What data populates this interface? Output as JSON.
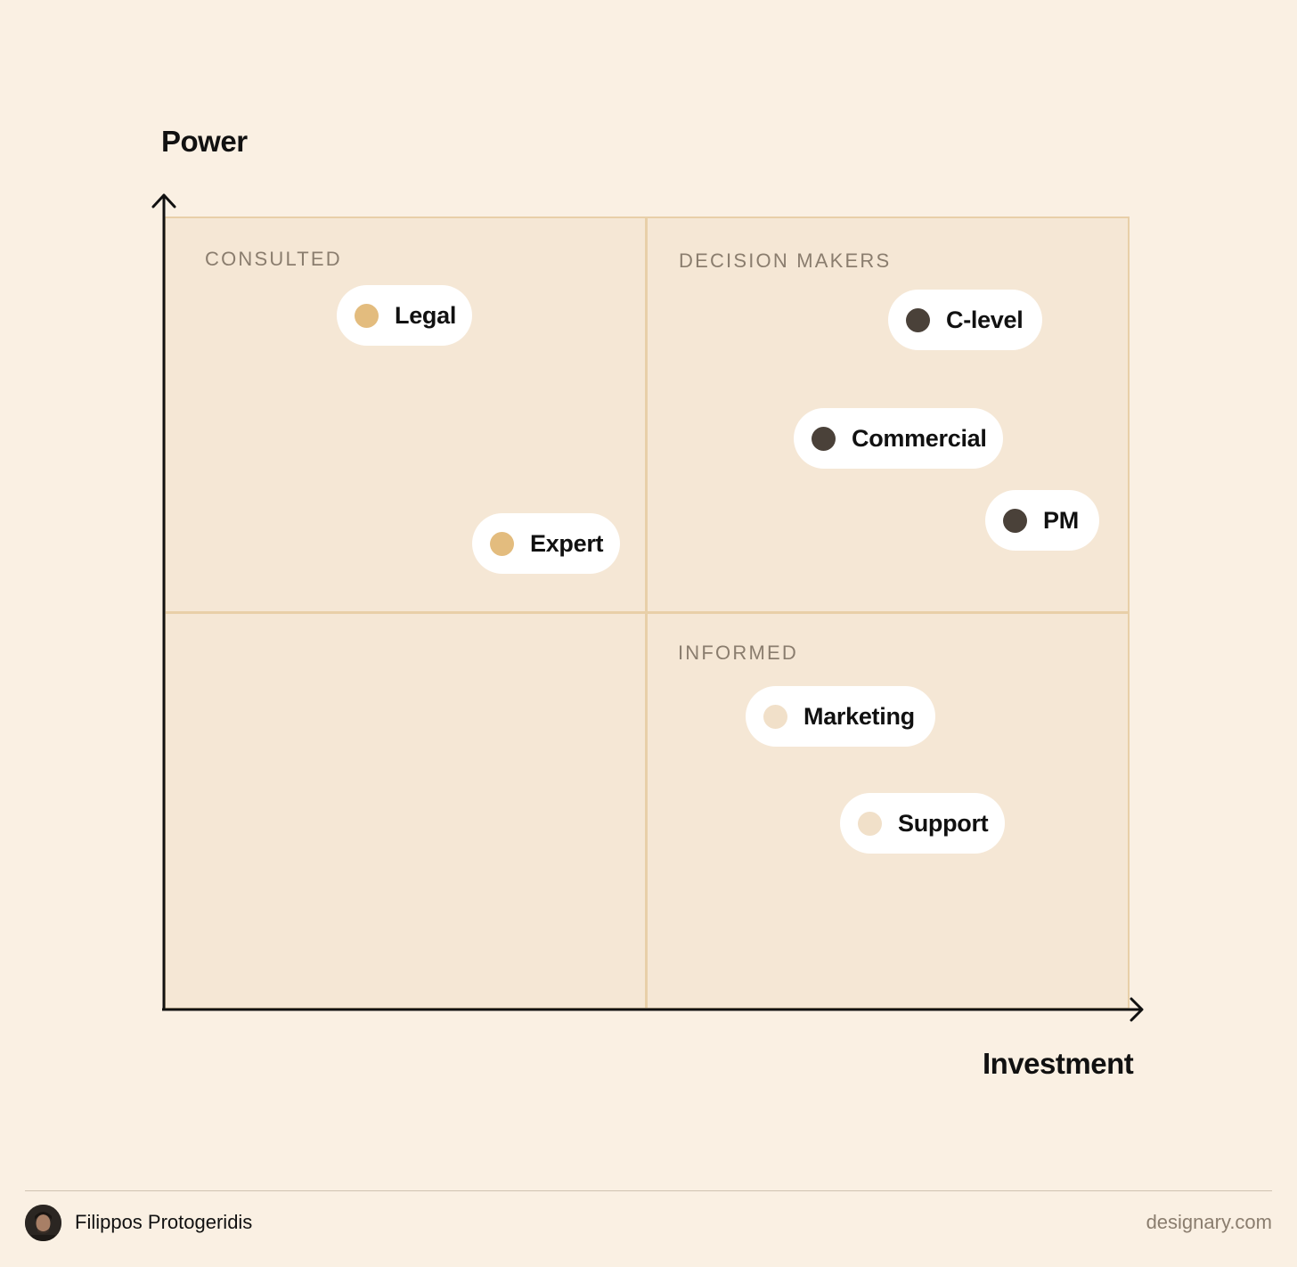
{
  "axes": {
    "y_label": "Power",
    "x_label": "Investment"
  },
  "quadrants": {
    "top_left": "CONSULTED",
    "top_right": "DECISION MAKERS",
    "bottom_right": "INFORMED"
  },
  "colors": {
    "background": "#FAF0E3",
    "matrix_fill": "#F5E7D5",
    "grid_line": "#E8CFA8",
    "consulted_dot": "#E3BC7E",
    "decision_dot": "#4A4139",
    "informed_dot": "#F1E0C9"
  },
  "stakeholders": [
    {
      "label": "Legal",
      "group": "consulted",
      "dot_color": "#E3BC7E"
    },
    {
      "label": "Expert",
      "group": "consulted",
      "dot_color": "#E3BC7E"
    },
    {
      "label": "C-level",
      "group": "decision",
      "dot_color": "#4A4139"
    },
    {
      "label": "Commercial",
      "group": "decision",
      "dot_color": "#4A4139"
    },
    {
      "label": "PM",
      "group": "decision",
      "dot_color": "#4A4139"
    },
    {
      "label": "Marketing",
      "group": "informed",
      "dot_color": "#F1E0C9"
    },
    {
      "label": "Support",
      "group": "informed",
      "dot_color": "#F1E0C9"
    }
  ],
  "footer": {
    "author": "Filippos Protogeridis",
    "site": "designary.com"
  }
}
